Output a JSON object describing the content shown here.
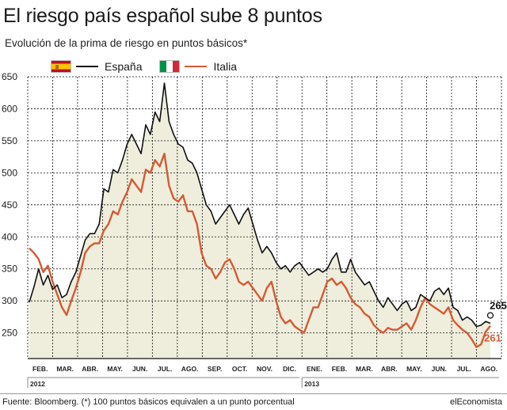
{
  "header": {
    "title": "El riesgo país español sube 8 puntos",
    "subtitle": "Evolución de la prima de riesgo en puntos básicos*"
  },
  "legend": [
    {
      "name": "España",
      "color": "#111111",
      "flag": "spain-flag-icon"
    },
    {
      "name": "Italia",
      "color": "#d45a35",
      "flag": "italy-flag-icon"
    }
  ],
  "footer": {
    "source": "Fuente: Bloomberg. (*) 100 puntos básicos equivalen a un punto porcentual",
    "brand": "elEconomista"
  },
  "chart_data": {
    "type": "line",
    "title": "El riesgo país español sube 8 puntos",
    "subtitle": "Evolución de la prima de riesgo en puntos básicos*",
    "xlabel": "",
    "ylabel": "",
    "ylim": [
      210,
      650
    ],
    "yticks": [
      250,
      300,
      350,
      400,
      450,
      500,
      550,
      600,
      650
    ],
    "months": [
      "FEB.",
      "MAR.",
      "ABR.",
      "MAY.",
      "JUN.",
      "JUL.",
      "AGO.",
      "SEP.",
      "OCT.",
      "NOV.",
      "DIC.",
      "ENE.",
      "FEB.",
      "MAR.",
      "ABR.",
      "MAY.",
      "JUN.",
      "JUL.",
      "AGO."
    ],
    "years": [
      {
        "label": "2012",
        "start_month_index": 0
      },
      {
        "label": "2013",
        "start_month_index": 11
      }
    ],
    "grid": true,
    "fill_color": "#efeedc",
    "series": [
      {
        "name": "España",
        "color": "#111111",
        "end_label": "265",
        "values": [
          298,
          322,
          350,
          325,
          340,
          318,
          325,
          305,
          310,
          330,
          345,
          370,
          395,
          405,
          405,
          420,
          475,
          470,
          505,
          500,
          520,
          545,
          560,
          545,
          530,
          575,
          560,
          595,
          580,
          640,
          580,
          560,
          545,
          540,
          520,
          515,
          500,
          475,
          450,
          440,
          420,
          430,
          440,
          450,
          435,
          420,
          435,
          445,
          420,
          395,
          375,
          385,
          375,
          360,
          350,
          355,
          345,
          355,
          360,
          350,
          340,
          345,
          350,
          345,
          350,
          365,
          375,
          345,
          345,
          365,
          345,
          335,
          325,
          330,
          315,
          300,
          290,
          305,
          295,
          285,
          295,
          300,
          285,
          290,
          310,
          305,
          300,
          315,
          320,
          310,
          320,
          290,
          285,
          270,
          275,
          270,
          260,
          262,
          268,
          265
        ]
      },
      {
        "name": "Italia",
        "color": "#d45a35",
        "end_label": "261",
        "values": [
          382,
          375,
          365,
          345,
          355,
          330,
          310,
          290,
          278,
          300,
          320,
          345,
          375,
          385,
          390,
          390,
          410,
          420,
          440,
          435,
          455,
          470,
          490,
          480,
          470,
          505,
          500,
          520,
          510,
          530,
          480,
          460,
          455,
          465,
          440,
          440,
          420,
          375,
          355,
          350,
          335,
          345,
          360,
          365,
          350,
          330,
          325,
          330,
          320,
          310,
          300,
          320,
          330,
          300,
          275,
          265,
          270,
          260,
          255,
          250,
          270,
          290,
          290,
          310,
          330,
          335,
          325,
          330,
          320,
          305,
          295,
          290,
          280,
          275,
          262,
          255,
          250,
          258,
          255,
          255,
          260,
          265,
          255,
          270,
          290,
          305,
          295,
          290,
          285,
          280,
          290,
          270,
          262,
          255,
          250,
          240,
          228,
          232,
          252,
          261
        ]
      }
    ]
  }
}
